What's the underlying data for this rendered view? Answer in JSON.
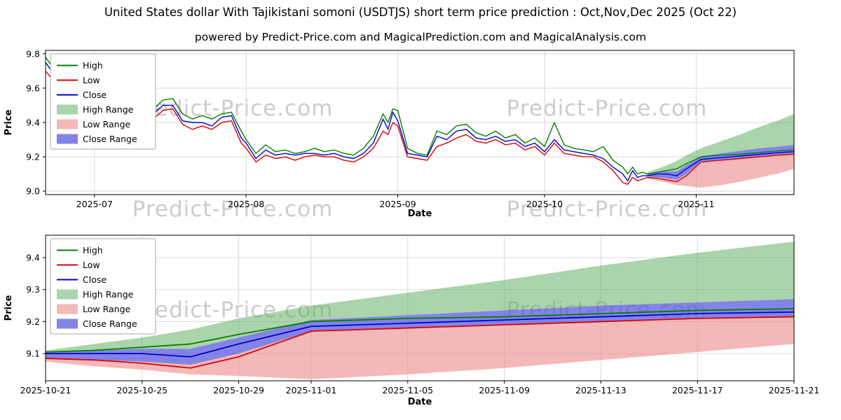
{
  "title": "United States dollar With Tajikistani somoni (USDTJS) short term price prediction : Oct,Nov,Dec 2025 (Oct 22)",
  "subtitle": "powered by Predict-Price.com and MagicalPrediction.com and MagicalAnalysis.com",
  "watermark": "Predict-Price.com",
  "colors": {
    "high_line": "#008000",
    "low_line": "#dd0000",
    "close_line": "#0000cd",
    "high_range": "#55aa55",
    "low_range": "#ee8888",
    "close_range": "#5555dd",
    "grid": "#d9d9d9",
    "watermark_gray": "#cccccc"
  },
  "chart_data": [
    {
      "type": "line",
      "title": "",
      "xlabel": "Date",
      "ylabel": "Price",
      "x_note": "x = days since 2025-06-21; history to 2025-10-22 then prediction fan to 2025-11-21",
      "xlim": [
        0,
        153
      ],
      "ylim": [
        8.98,
        9.82
      ],
      "yticks": [
        9.0,
        9.2,
        9.4,
        9.6,
        9.8
      ],
      "xticks": [
        {
          "pos": 10,
          "label": "2025-07"
        },
        {
          "pos": 41,
          "label": "2025-08"
        },
        {
          "pos": 72,
          "label": "2025-09"
        },
        {
          "pos": 102,
          "label": "2025-10"
        },
        {
          "pos": 133,
          "label": "2025-11"
        }
      ],
      "grid_color": "#d9d9d9",
      "bands": [
        {
          "name": "High Range",
          "color": "#55aa55",
          "opacity": 0.5,
          "x": [
            123,
            125,
            127,
            129,
            131,
            134,
            138,
            142,
            146,
            150,
            153
          ],
          "upper": [
            9.11,
            9.13,
            9.15,
            9.175,
            9.21,
            9.25,
            9.29,
            9.33,
            9.375,
            9.415,
            9.45
          ],
          "lower": [
            9.105,
            9.11,
            9.115,
            9.115,
            9.15,
            9.205,
            9.22,
            9.235,
            9.25,
            9.26,
            9.27
          ]
        },
        {
          "name": "Low Range",
          "color": "#ee8888",
          "opacity": 0.6,
          "x": [
            123,
            125,
            127,
            129,
            131,
            134,
            138,
            142,
            146,
            150,
            153
          ],
          "upper": [
            9.085,
            9.08,
            9.075,
            9.065,
            9.1,
            9.17,
            9.18,
            9.19,
            9.2,
            9.21,
            9.215
          ],
          "lower": [
            9.075,
            9.06,
            9.05,
            9.035,
            9.03,
            9.02,
            9.035,
            9.055,
            9.08,
            9.105,
            9.13
          ]
        },
        {
          "name": "Close Range",
          "color": "#5555dd",
          "opacity": 0.72,
          "x": [
            123,
            125,
            127,
            129,
            131,
            134,
            138,
            142,
            146,
            150,
            153
          ],
          "upper": [
            9.105,
            9.11,
            9.115,
            9.115,
            9.15,
            9.205,
            9.22,
            9.235,
            9.25,
            9.26,
            9.27
          ],
          "lower": [
            9.085,
            9.08,
            9.075,
            9.065,
            9.1,
            9.17,
            9.18,
            9.19,
            9.2,
            9.21,
            9.215
          ]
        }
      ],
      "series": [
        {
          "name": "High",
          "color": "#008000",
          "x": [
            0,
            2,
            4,
            6,
            8,
            10,
            12,
            14,
            16,
            18,
            20,
            22,
            24,
            26,
            28,
            30,
            32,
            34,
            36,
            38,
            40,
            41,
            43,
            45,
            47,
            49,
            51,
            53,
            55,
            57,
            59,
            61,
            63,
            65,
            67,
            69,
            70,
            71,
            72,
            74,
            76,
            78,
            80,
            82,
            84,
            86,
            88,
            90,
            92,
            94,
            96,
            98,
            100,
            102,
            104,
            106,
            108,
            110,
            112,
            114,
            116,
            118,
            119,
            120,
            121,
            122,
            123,
            125,
            127,
            129,
            131,
            134,
            138,
            142,
            146,
            150,
            153
          ],
          "y": [
            9.78,
            9.7,
            9.62,
            9.57,
            9.63,
            9.57,
            9.62,
            9.56,
            9.55,
            9.57,
            9.55,
            9.48,
            9.53,
            9.54,
            9.45,
            9.42,
            9.44,
            9.42,
            9.45,
            9.46,
            9.35,
            9.3,
            9.22,
            9.27,
            9.23,
            9.24,
            9.22,
            9.23,
            9.25,
            9.23,
            9.24,
            9.22,
            9.21,
            9.25,
            9.32,
            9.45,
            9.4,
            9.48,
            9.47,
            9.25,
            9.22,
            9.21,
            9.35,
            9.33,
            9.38,
            9.39,
            9.34,
            9.32,
            9.35,
            9.31,
            9.33,
            9.28,
            9.31,
            9.26,
            9.4,
            9.27,
            9.25,
            9.24,
            9.23,
            9.26,
            9.18,
            9.14,
            9.1,
            9.14,
            9.1,
            9.11,
            9.1,
            9.11,
            9.12,
            9.13,
            9.16,
            9.2,
            9.21,
            9.215,
            9.225,
            9.235,
            9.24
          ]
        },
        {
          "name": "Low",
          "color": "#dd0000",
          "x": [
            0,
            2,
            4,
            6,
            8,
            10,
            12,
            14,
            16,
            18,
            20,
            22,
            24,
            26,
            28,
            30,
            32,
            34,
            36,
            38,
            40,
            41,
            43,
            45,
            47,
            49,
            51,
            53,
            55,
            57,
            59,
            61,
            63,
            65,
            67,
            69,
            70,
            71,
            72,
            74,
            76,
            78,
            80,
            82,
            84,
            86,
            88,
            90,
            92,
            94,
            96,
            98,
            100,
            102,
            104,
            106,
            108,
            110,
            112,
            114,
            116,
            118,
            119,
            120,
            121,
            122,
            123,
            125,
            127,
            129,
            131,
            134,
            138,
            142,
            146,
            150,
            153
          ],
          "y": [
            9.7,
            9.63,
            9.55,
            9.51,
            9.56,
            9.51,
            9.55,
            9.5,
            9.5,
            9.52,
            9.49,
            9.42,
            9.47,
            9.48,
            9.39,
            9.36,
            9.38,
            9.36,
            9.4,
            9.41,
            9.28,
            9.25,
            9.17,
            9.21,
            9.19,
            9.2,
            9.18,
            9.2,
            9.21,
            9.2,
            9.2,
            9.18,
            9.17,
            9.2,
            9.25,
            9.35,
            9.33,
            9.4,
            9.38,
            9.2,
            9.19,
            9.18,
            9.26,
            9.28,
            9.31,
            9.33,
            9.29,
            9.28,
            9.3,
            9.27,
            9.28,
            9.24,
            9.26,
            9.21,
            9.28,
            9.22,
            9.21,
            9.2,
            9.2,
            9.17,
            9.12,
            9.05,
            9.04,
            9.08,
            9.06,
            9.07,
            9.08,
            9.075,
            9.065,
            9.055,
            9.09,
            9.17,
            9.18,
            9.19,
            9.2,
            9.21,
            9.215
          ]
        },
        {
          "name": "Close",
          "color": "#0000cd",
          "x": [
            0,
            2,
            4,
            6,
            8,
            10,
            12,
            14,
            16,
            18,
            20,
            22,
            24,
            26,
            28,
            30,
            32,
            34,
            36,
            38,
            40,
            41,
            43,
            45,
            47,
            49,
            51,
            53,
            55,
            57,
            59,
            61,
            63,
            65,
            67,
            69,
            70,
            71,
            72,
            74,
            76,
            78,
            80,
            82,
            84,
            86,
            88,
            90,
            92,
            94,
            96,
            98,
            100,
            102,
            104,
            106,
            108,
            110,
            112,
            114,
            116,
            118,
            119,
            120,
            121,
            122,
            123,
            125,
            127,
            129,
            131,
            134,
            138,
            142,
            146,
            150,
            153
          ],
          "y": [
            9.75,
            9.67,
            9.58,
            9.55,
            9.6,
            9.54,
            9.57,
            9.52,
            9.54,
            9.55,
            9.51,
            9.45,
            9.5,
            9.5,
            9.41,
            9.4,
            9.4,
            9.38,
            9.43,
            9.44,
            9.31,
            9.28,
            9.19,
            9.24,
            9.21,
            9.22,
            9.21,
            9.22,
            9.22,
            9.21,
            9.22,
            9.2,
            9.19,
            9.22,
            9.28,
            9.42,
            9.36,
            9.46,
            9.41,
            9.22,
            9.21,
            9.2,
            9.32,
            9.3,
            9.35,
            9.36,
            9.31,
            9.3,
            9.32,
            9.29,
            9.3,
            9.26,
            9.28,
            9.23,
            9.3,
            9.24,
            9.23,
            9.22,
            9.21,
            9.19,
            9.14,
            9.1,
            9.06,
            9.12,
            9.08,
            9.09,
            9.09,
            9.1,
            9.1,
            9.09,
            9.13,
            9.185,
            9.195,
            9.205,
            9.215,
            9.225,
            9.23
          ]
        }
      ],
      "legend": [
        {
          "label": "High",
          "swatch": "line",
          "color": "#008000"
        },
        {
          "label": "Low",
          "swatch": "line",
          "color": "#dd0000"
        },
        {
          "label": "Close",
          "swatch": "line",
          "color": "#0000cd"
        },
        {
          "label": "High Range",
          "swatch": "patch",
          "color": "#55aa55",
          "opacity": 0.5
        },
        {
          "label": "Low Range",
          "swatch": "patch",
          "color": "#ee8888",
          "opacity": 0.6
        },
        {
          "label": "Close Range",
          "swatch": "patch",
          "color": "#5555dd",
          "opacity": 0.72
        }
      ]
    },
    {
      "type": "line",
      "title": "",
      "xlabel": "Date",
      "ylabel": "Price",
      "x_note": "x = days since 2025-10-21; prediction detail to 2025-11-21",
      "xlim": [
        0,
        31
      ],
      "ylim": [
        9.015,
        9.47
      ],
      "yticks": [
        9.1,
        9.2,
        9.3,
        9.4
      ],
      "xticks": [
        {
          "pos": 0,
          "label": "2025-10-21"
        },
        {
          "pos": 4,
          "label": "2025-10-25"
        },
        {
          "pos": 8,
          "label": "2025-10-29"
        },
        {
          "pos": 11,
          "label": "2025-11-01"
        },
        {
          "pos": 15,
          "label": "2025-11-05"
        },
        {
          "pos": 19,
          "label": "2025-11-09"
        },
        {
          "pos": 23,
          "label": "2025-11-13"
        },
        {
          "pos": 27,
          "label": "2025-11-17"
        },
        {
          "pos": 31,
          "label": "2025-11-21"
        }
      ],
      "grid_color": "#d9d9d9",
      "bands": [
        {
          "name": "High Range",
          "color": "#55aa55",
          "opacity": 0.5,
          "x": [
            0,
            2,
            4,
            6,
            8,
            11,
            15,
            19,
            23,
            27,
            31
          ],
          "upper": [
            9.11,
            9.13,
            9.15,
            9.175,
            9.21,
            9.25,
            9.29,
            9.33,
            9.375,
            9.415,
            9.45
          ],
          "lower": [
            9.105,
            9.11,
            9.115,
            9.115,
            9.15,
            9.205,
            9.22,
            9.235,
            9.25,
            9.26,
            9.27
          ]
        },
        {
          "name": "Low Range",
          "color": "#ee8888",
          "opacity": 0.6,
          "x": [
            0,
            2,
            4,
            6,
            8,
            11,
            15,
            19,
            23,
            27,
            31
          ],
          "upper": [
            9.085,
            9.08,
            9.075,
            9.065,
            9.1,
            9.17,
            9.18,
            9.19,
            9.2,
            9.21,
            9.215
          ],
          "lower": [
            9.075,
            9.06,
            9.05,
            9.035,
            9.03,
            9.02,
            9.035,
            9.055,
            9.08,
            9.105,
            9.13
          ]
        },
        {
          "name": "Close Range",
          "color": "#5555dd",
          "opacity": 0.72,
          "x": [
            0,
            2,
            4,
            6,
            8,
            11,
            15,
            19,
            23,
            27,
            31
          ],
          "upper": [
            9.105,
            9.11,
            9.115,
            9.115,
            9.15,
            9.205,
            9.22,
            9.235,
            9.25,
            9.26,
            9.27
          ],
          "lower": [
            9.085,
            9.08,
            9.075,
            9.065,
            9.1,
            9.17,
            9.18,
            9.19,
            9.2,
            9.21,
            9.215
          ]
        }
      ],
      "series": [
        {
          "name": "High",
          "color": "#008000",
          "x": [
            0,
            2,
            4,
            6,
            8,
            11,
            15,
            19,
            23,
            27,
            31
          ],
          "y": [
            9.105,
            9.11,
            9.12,
            9.13,
            9.16,
            9.2,
            9.21,
            9.215,
            9.225,
            9.235,
            9.24
          ]
        },
        {
          "name": "Low",
          "color": "#dd0000",
          "x": [
            0,
            2,
            4,
            6,
            8,
            11,
            15,
            19,
            23,
            27,
            31
          ],
          "y": [
            9.085,
            9.08,
            9.07,
            9.055,
            9.09,
            9.17,
            9.18,
            9.19,
            9.2,
            9.21,
            9.215
          ]
        },
        {
          "name": "Close",
          "color": "#0000cd",
          "x": [
            0,
            2,
            4,
            6,
            8,
            11,
            15,
            19,
            23,
            27,
            31
          ],
          "y": [
            9.1,
            9.1,
            9.1,
            9.09,
            9.13,
            9.185,
            9.195,
            9.205,
            9.215,
            9.225,
            9.23
          ]
        }
      ],
      "legend": [
        {
          "label": "High",
          "swatch": "line",
          "color": "#008000"
        },
        {
          "label": "Low",
          "swatch": "line",
          "color": "#dd0000"
        },
        {
          "label": "Close",
          "swatch": "line",
          "color": "#0000cd"
        },
        {
          "label": "High Range",
          "swatch": "patch",
          "color": "#55aa55",
          "opacity": 0.5
        },
        {
          "label": "Low Range",
          "swatch": "patch",
          "color": "#ee8888",
          "opacity": 0.6
        },
        {
          "label": "Close Range",
          "swatch": "patch",
          "color": "#5555dd",
          "opacity": 0.72
        }
      ]
    }
  ]
}
